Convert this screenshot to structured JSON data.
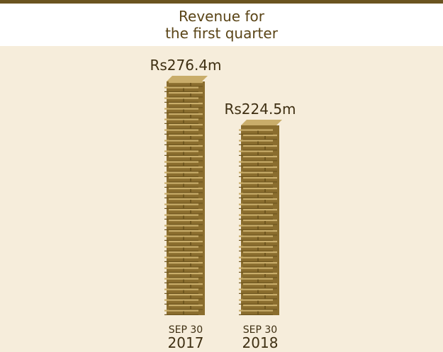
{
  "header": {
    "title_line1": "Revenue for",
    "title_line2": "the first quarter"
  },
  "colors": {
    "brand": "#6b5420",
    "background": "#f6eddb",
    "header_background": "#ffffff",
    "brick_front": "#8a6d2e",
    "brick_top": "#c9ad6a",
    "brick_side": "#6f561f"
  },
  "chart_data": {
    "type": "bar",
    "title": "Revenue for the first quarter",
    "categories": [
      "SEP 30 2017",
      "SEP 30 2018"
    ],
    "category_lines": [
      [
        "SEP 30",
        "2017"
      ],
      [
        "SEP 30",
        "2018"
      ]
    ],
    "values": [
      276.4,
      224.5
    ],
    "value_labels": [
      "Rs276.4m",
      "Rs224.5m"
    ],
    "ylim": [
      0,
      276.4
    ],
    "grid": false,
    "legend": "none",
    "bar_style": "stacked coin-like bricks"
  }
}
